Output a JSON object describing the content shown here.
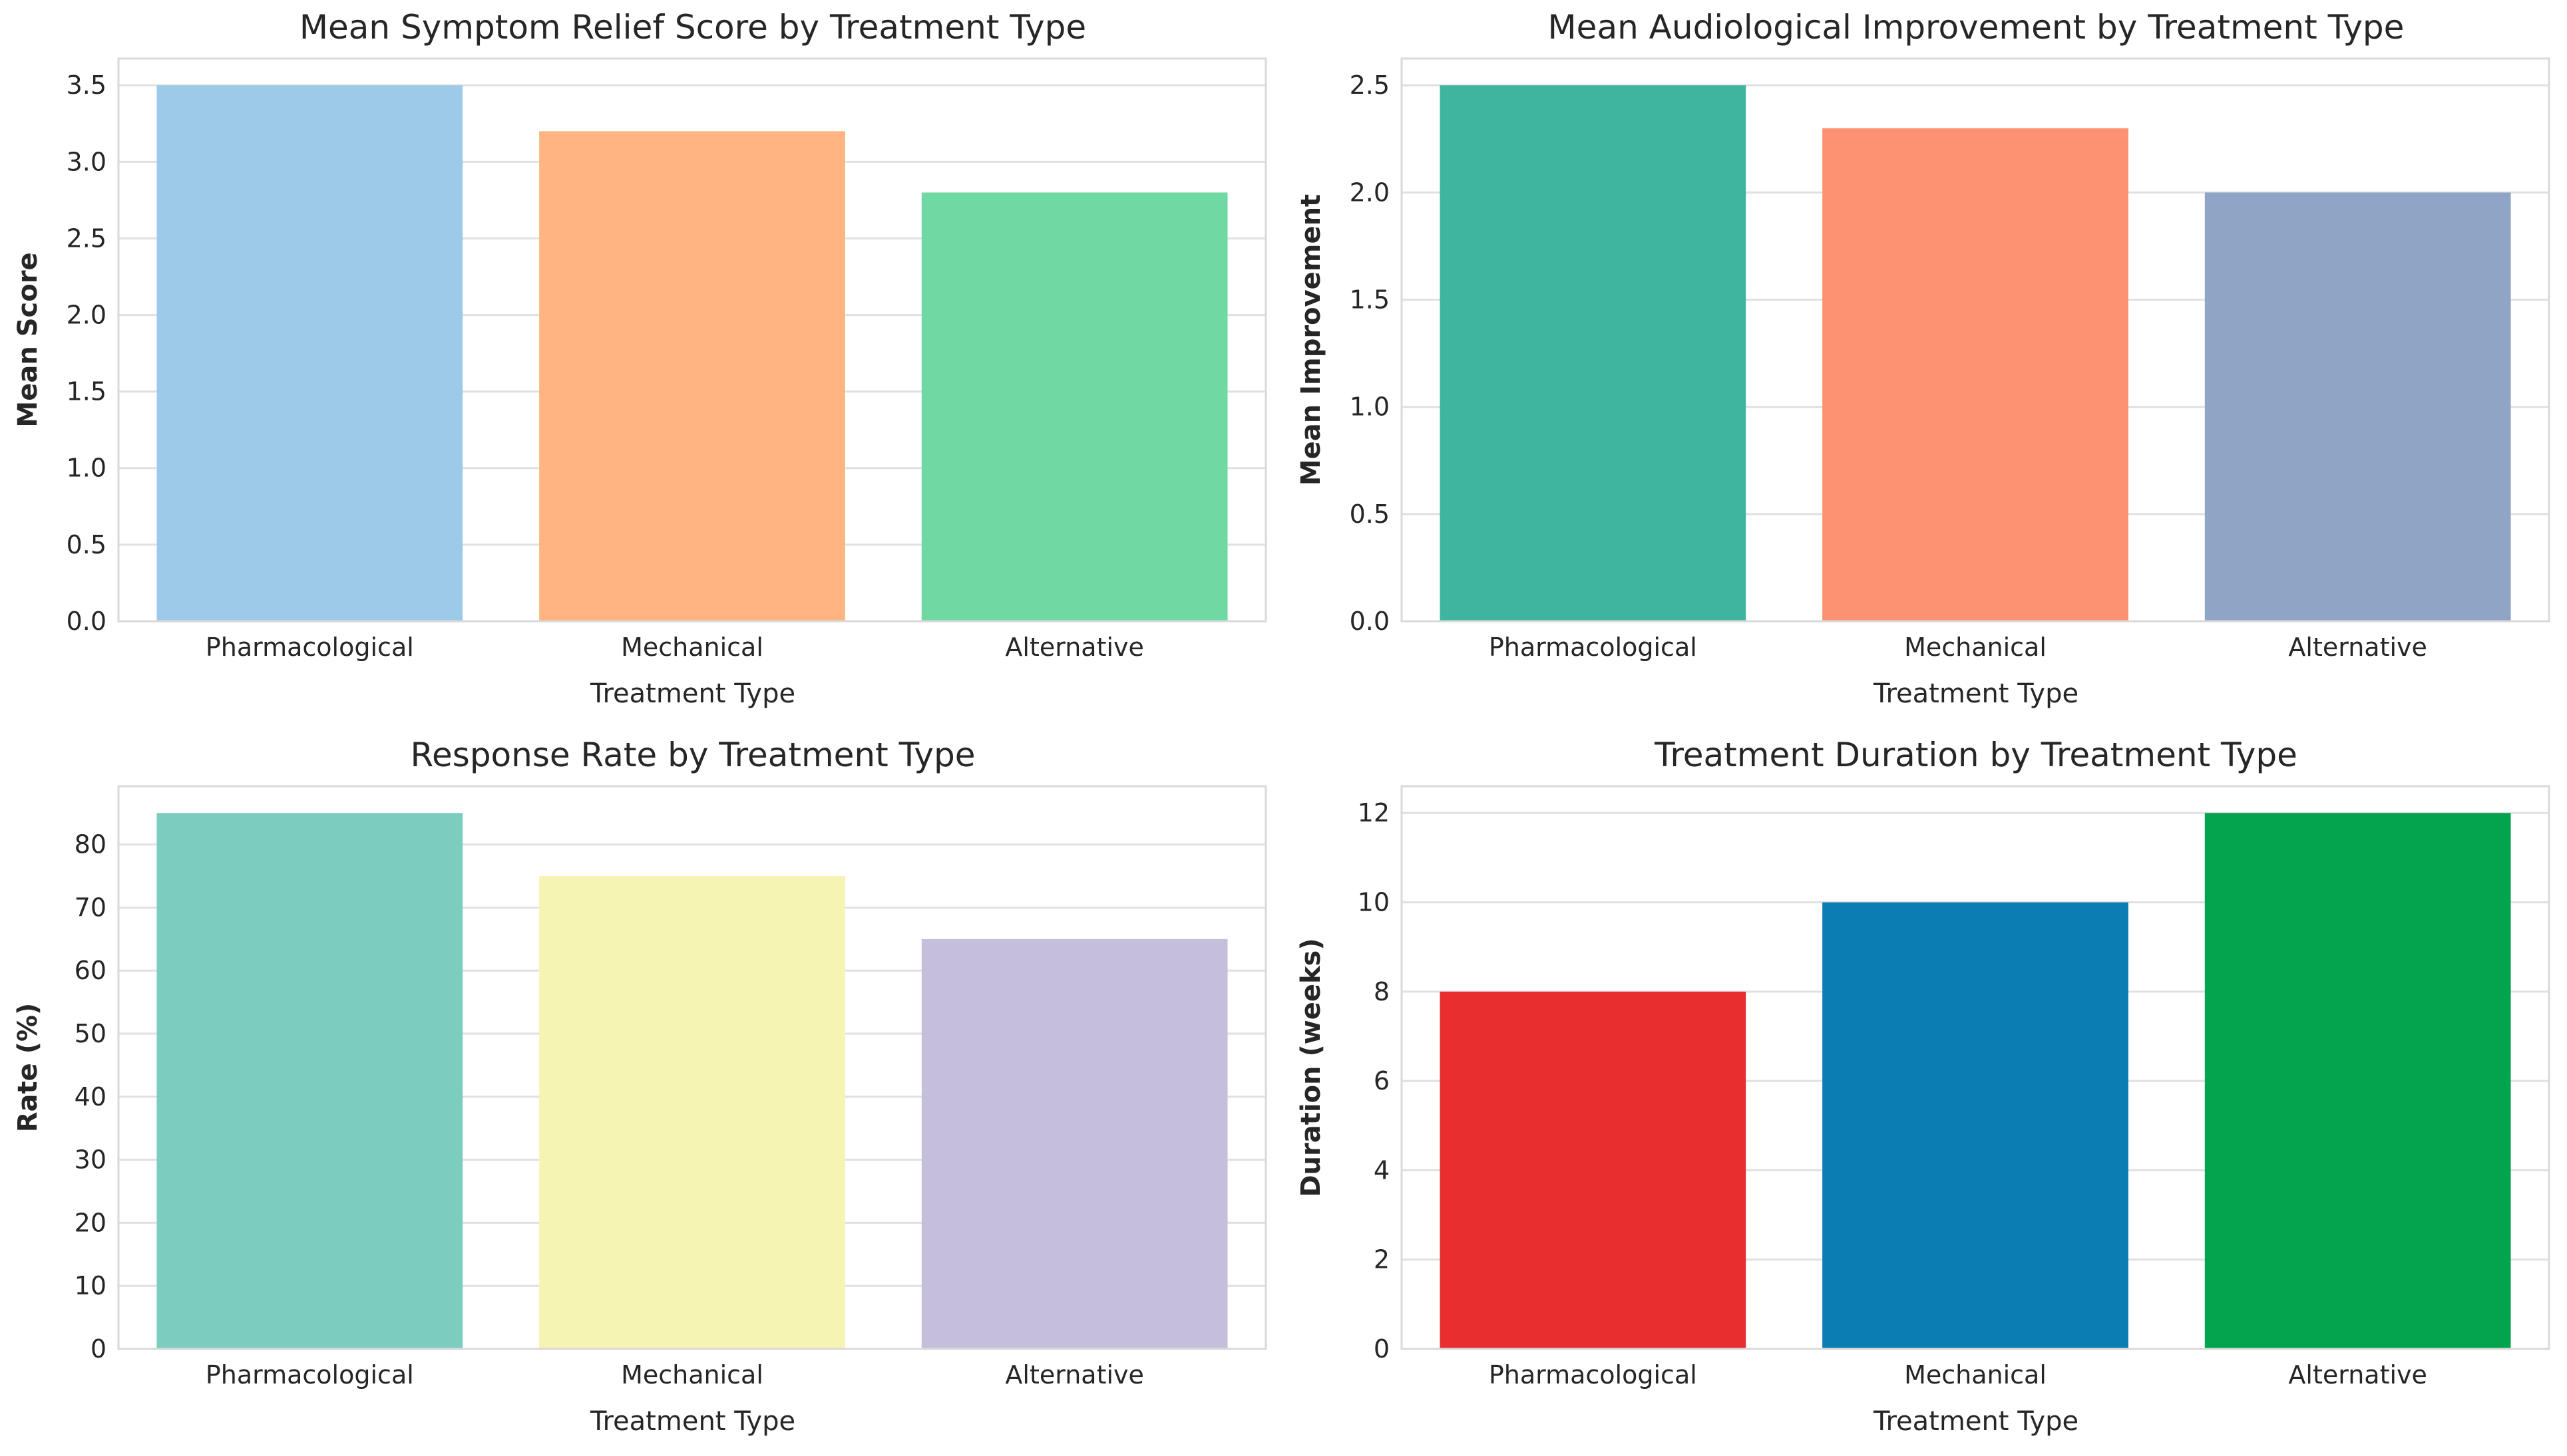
{
  "figure": {
    "background": "#ffffff",
    "layout": "2x2 grid of bar charts",
    "shared_categories": [
      "Pharmacological",
      "Mechanical",
      "Alternative"
    ]
  },
  "style": {
    "spine_color": "#d9d9d9",
    "grid_color": "#e0e0e0",
    "text_color": "#262626",
    "tick_label_color": "#262626",
    "plot_background": "#ffffff"
  },
  "chart_data": [
    {
      "type": "bar",
      "title": "Mean Symptom Relief Score by Treatment Type",
      "xlabel": "Treatment Type",
      "ylabel": "Mean Score",
      "categories": [
        "Pharmacological",
        "Mechanical",
        "Alternative"
      ],
      "values": [
        3.5,
        3.2,
        2.8
      ],
      "bar_colors": [
        "#9ECAE9",
        "#FFB482",
        "#70D8A3"
      ],
      "ylim": [
        0,
        3.675
      ],
      "ytick_values": [
        0.0,
        0.5,
        1.0,
        1.5,
        2.0,
        2.5,
        3.0,
        3.5
      ],
      "ytick_labels": [
        "0.0",
        "0.5",
        "1.0",
        "1.5",
        "2.0",
        "2.5",
        "3.0",
        "3.5"
      ],
      "grid": true,
      "legend": "none"
    },
    {
      "type": "bar",
      "title": "Mean Audiological Improvement by Treatment Type",
      "xlabel": "Treatment Type",
      "ylabel": "Mean Improvement",
      "categories": [
        "Pharmacological",
        "Mechanical",
        "Alternative"
      ],
      "values": [
        2.5,
        2.3,
        2.0
      ],
      "bar_colors": [
        "#3FB5A0",
        "#FC9272",
        "#90A4C6"
      ],
      "ylim": [
        0,
        2.625
      ],
      "ytick_values": [
        0.0,
        0.5,
        1.0,
        1.5,
        2.0,
        2.5
      ],
      "ytick_labels": [
        "0.0",
        "0.5",
        "1.0",
        "1.5",
        "2.0",
        "2.5"
      ],
      "grid": true,
      "legend": "none"
    },
    {
      "type": "bar",
      "title": "Response Rate by Treatment Type",
      "xlabel": "Treatment Type",
      "ylabel": "Rate (%)",
      "categories": [
        "Pharmacological",
        "Mechanical",
        "Alternative"
      ],
      "values": [
        85,
        75,
        65
      ],
      "bar_colors": [
        "#7CCCC0",
        "#F5F4B3",
        "#C5BFDB"
      ],
      "ylim": [
        0,
        89.25
      ],
      "ytick_values": [
        0,
        10,
        20,
        30,
        40,
        50,
        60,
        70,
        80
      ],
      "ytick_labels": [
        "0",
        "10",
        "20",
        "30",
        "40",
        "50",
        "60",
        "70",
        "80"
      ],
      "grid": true,
      "legend": "none"
    },
    {
      "type": "bar",
      "title": "Treatment Duration by Treatment Type",
      "xlabel": "Treatment Type",
      "ylabel": "Duration (weeks)",
      "categories": [
        "Pharmacological",
        "Mechanical",
        "Alternative"
      ],
      "values": [
        8,
        10,
        12
      ],
      "bar_colors": [
        "#E82E2E",
        "#0B7DB2",
        "#04A34E"
      ],
      "ylim": [
        0,
        12.6
      ],
      "ytick_values": [
        0,
        2,
        4,
        6,
        8,
        10,
        12
      ],
      "ytick_labels": [
        "0",
        "2",
        "4",
        "6",
        "8",
        "10",
        "12"
      ],
      "grid": true,
      "legend": "none"
    }
  ]
}
